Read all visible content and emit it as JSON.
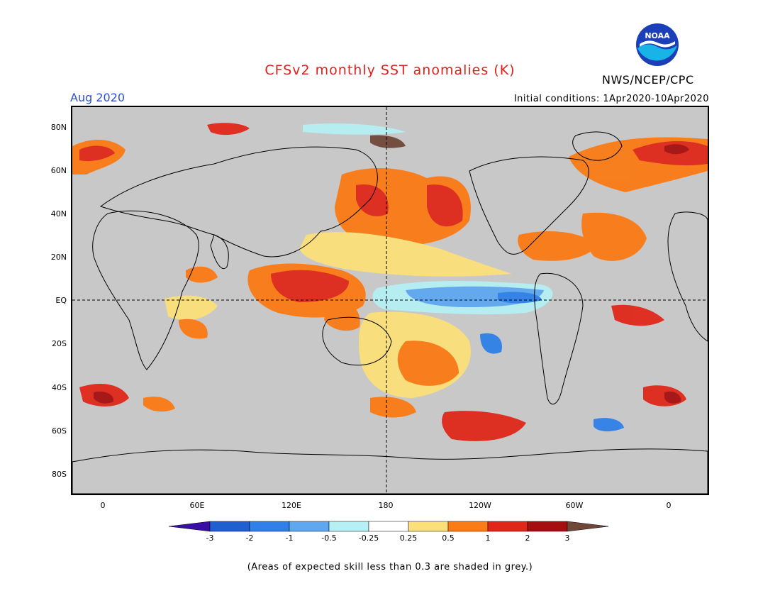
{
  "header": {
    "title": "CFSv2 monthly SST anomalies (K)",
    "month": "Aug 2020",
    "initial_conditions": "Initial conditions: 1Apr2020-10Apr2020",
    "org": "NWS/NCEP/CPC",
    "logo_text": "NOAA"
  },
  "axes": {
    "lat_labels": [
      "80N",
      "60N",
      "40N",
      "20N",
      "EQ",
      "20S",
      "40S",
      "60S",
      "80S"
    ],
    "lon_labels": [
      "0",
      "60E",
      "120E",
      "180",
      "120W",
      "60W",
      "0"
    ]
  },
  "colorbar": {
    "ticks": [
      "-3",
      "-2",
      "-1",
      "-0.5",
      "-0.25",
      "0.25",
      "0.5",
      "1",
      "2",
      "3"
    ],
    "colors": [
      "#3a0fa6",
      "#1f5fd0",
      "#2f80e8",
      "#5fa8f0",
      "#b4f0f4",
      "#ffffff",
      "#fbe07a",
      "#fb7b14",
      "#e0281a",
      "#a60f0f",
      "#70483a"
    ]
  },
  "footnote": "(Areas of expected skill less than 0.3 are shaded in grey.)"
}
